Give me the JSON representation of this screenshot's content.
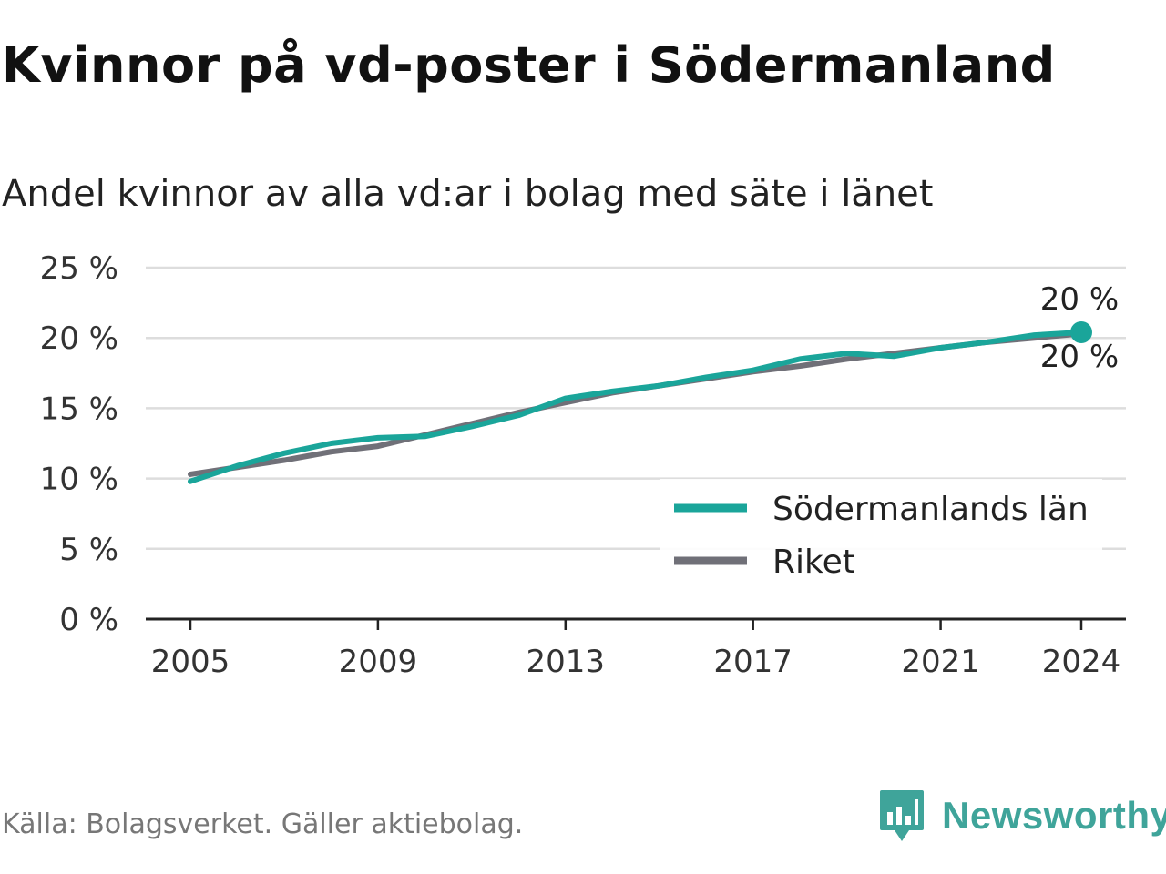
{
  "title": "Kvinnor på vd-poster i Södermanland",
  "subtitle": "Andel kvinnor av alla vd:ar i bolag med säte i länet",
  "source": "Källa: Bolagsverket. Gäller aktiebolag.",
  "logo_text": "Newsworthy",
  "colors": {
    "lan": "#1aa59a",
    "riket": "#707078",
    "grid": "#dddddd",
    "axis": "#222222",
    "logo": "#3fa49a"
  },
  "chart_data": {
    "type": "line",
    "title": "Kvinnor på vd-poster i Södermanland",
    "subtitle": "Andel kvinnor av alla vd:ar i bolag med säte i länet",
    "x": [
      2005,
      2006,
      2007,
      2008,
      2009,
      2010,
      2011,
      2012,
      2013,
      2014,
      2015,
      2016,
      2017,
      2018,
      2019,
      2020,
      2021,
      2022,
      2023,
      2024
    ],
    "x_ticks": [
      "2005",
      "2009",
      "2013",
      "2017",
      "2021",
      "2024"
    ],
    "y_ticks": [
      "0 %",
      "5 %",
      "10 %",
      "15 %",
      "20 %",
      "25 %"
    ],
    "ylim": [
      0,
      25
    ],
    "series": [
      {
        "name": "Södermanlands län",
        "color": "#1aa59a",
        "values": [
          9.8,
          10.9,
          11.8,
          12.5,
          12.9,
          13.0,
          13.7,
          14.5,
          15.7,
          16.2,
          16.6,
          17.2,
          17.7,
          18.5,
          18.9,
          18.7,
          19.3,
          19.7,
          20.2,
          20.4
        ]
      },
      {
        "name": "Riket",
        "color": "#707078",
        "values": [
          10.3,
          10.8,
          11.3,
          11.9,
          12.3,
          13.1,
          13.9,
          14.7,
          15.4,
          16.1,
          16.6,
          17.1,
          17.6,
          18.0,
          18.5,
          18.9,
          19.3,
          19.7,
          20.0,
          20.3
        ]
      }
    ],
    "end_labels": [
      "20 %",
      "20 %"
    ],
    "legend": [
      "Södermanlands län",
      "Riket"
    ],
    "legend_position": "lower-right",
    "grid": true
  }
}
